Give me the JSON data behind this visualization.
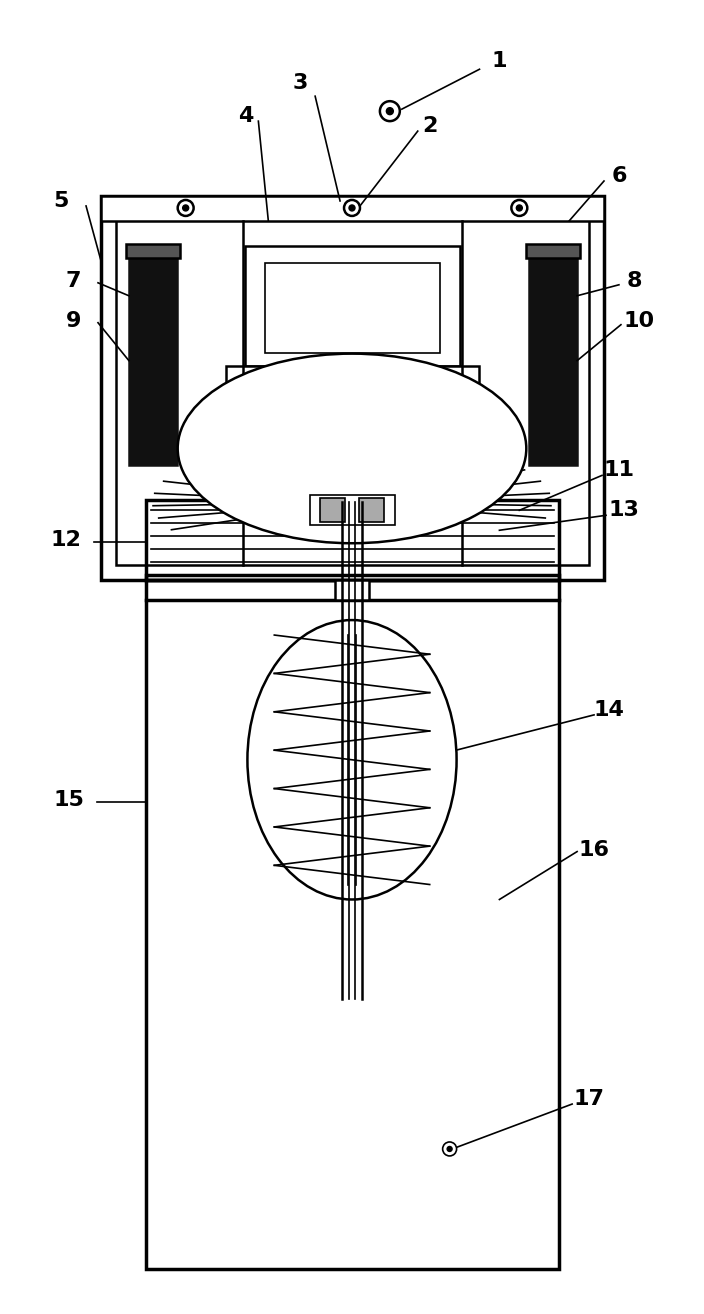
{
  "bg_color": "#ffffff",
  "line_color": "#000000",
  "fig_width": 7.04,
  "fig_height": 13.14,
  "dpi": 100
}
